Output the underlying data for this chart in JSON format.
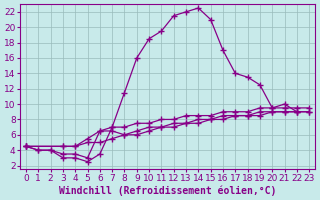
{
  "xlabel": "Windchill (Refroidissement éolien,°C)",
  "bg_color": "#c8eaea",
  "line_color": "#880088",
  "grid_color": "#99bbbb",
  "xlim": [
    -0.5,
    23.5
  ],
  "ylim": [
    1.5,
    23
  ],
  "xticks": [
    0,
    1,
    2,
    3,
    4,
    5,
    6,
    7,
    8,
    9,
    10,
    11,
    12,
    13,
    14,
    15,
    16,
    17,
    18,
    19,
    20,
    21,
    22,
    23
  ],
  "yticks": [
    2,
    4,
    6,
    8,
    10,
    12,
    14,
    16,
    18,
    20,
    22
  ],
  "line_main_x": [
    0,
    1,
    2,
    3,
    4,
    5,
    6,
    7,
    8,
    9,
    10,
    11,
    12,
    13,
    14,
    15,
    16,
    17,
    18,
    19,
    20,
    21,
    22
  ],
  "line_main_y": [
    4.5,
    4.0,
    4.0,
    3.0,
    3.0,
    2.5,
    3.5,
    7.0,
    11.5,
    16.0,
    18.5,
    19.5,
    21.5,
    22.0,
    22.5,
    21.0,
    17.0,
    14.0,
    13.5,
    12.5,
    9.5,
    10.0,
    9.0
  ],
  "line_a_x": [
    0,
    1,
    2,
    3,
    4,
    5,
    6,
    7,
    8,
    9,
    10,
    11,
    12,
    13,
    14,
    15,
    16,
    17,
    18,
    19,
    20,
    21,
    22,
    23
  ],
  "line_a_y": [
    4.5,
    4.0,
    4.0,
    3.5,
    3.5,
    3.0,
    6.5,
    6.5,
    6.0,
    6.0,
    6.5,
    7.0,
    7.0,
    7.5,
    7.5,
    8.0,
    8.0,
    8.5,
    8.5,
    8.5,
    9.0,
    9.0,
    9.0,
    9.0
  ],
  "line_b_x": [
    0,
    3,
    4,
    5,
    6,
    7,
    8,
    9,
    10,
    11,
    12,
    13,
    14,
    15,
    16,
    17,
    18,
    19,
    20,
    21,
    22,
    23
  ],
  "line_b_y": [
    4.5,
    4.5,
    4.5,
    5.0,
    5.0,
    5.5,
    6.0,
    6.5,
    7.0,
    7.0,
    7.5,
    7.5,
    8.0,
    8.0,
    8.5,
    8.5,
    8.5,
    9.0,
    9.0,
    9.0,
    9.0,
    9.0
  ],
  "line_c_x": [
    0,
    3,
    4,
    5,
    6,
    7,
    8,
    9,
    10,
    11,
    12,
    13,
    14,
    15,
    16,
    17,
    18,
    19,
    20,
    21,
    22,
    23
  ],
  "line_c_y": [
    4.5,
    4.5,
    4.5,
    5.5,
    6.5,
    7.0,
    7.0,
    7.5,
    7.5,
    8.0,
    8.0,
    8.5,
    8.5,
    8.5,
    9.0,
    9.0,
    9.0,
    9.5,
    9.5,
    9.5,
    9.5,
    9.5
  ],
  "fontsize_label": 7,
  "fontsize_tick": 6.5,
  "marker": "+"
}
